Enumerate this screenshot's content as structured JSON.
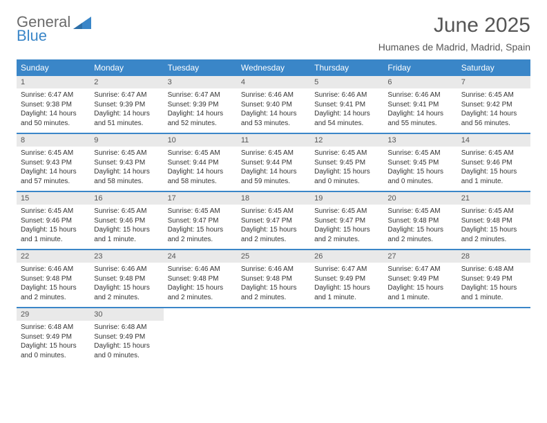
{
  "brand": {
    "line1": "General",
    "line2": "Blue"
  },
  "title": "June 2025",
  "location": "Humanes de Madrid, Madrid, Spain",
  "colors": {
    "brand_blue": "#3a86c8",
    "brand_gray": "#6b6b6b",
    "header_bg": "#3a86c8",
    "header_fg": "#ffffff",
    "daynum_bg": "#e9e9e9",
    "text": "#333333",
    "background": "#ffffff"
  },
  "typography": {
    "title_fontsize": 30,
    "location_fontsize": 14,
    "dow_fontsize": 12,
    "daynum_fontsize": 11,
    "cell_fontsize": 10
  },
  "days_of_week": [
    "Sunday",
    "Monday",
    "Tuesday",
    "Wednesday",
    "Thursday",
    "Friday",
    "Saturday"
  ],
  "weeks": [
    [
      {
        "n": "1",
        "sr": "Sunrise: 6:47 AM",
        "ss": "Sunset: 9:38 PM",
        "dl": "Daylight: 14 hours and 50 minutes."
      },
      {
        "n": "2",
        "sr": "Sunrise: 6:47 AM",
        "ss": "Sunset: 9:39 PM",
        "dl": "Daylight: 14 hours and 51 minutes."
      },
      {
        "n": "3",
        "sr": "Sunrise: 6:47 AM",
        "ss": "Sunset: 9:39 PM",
        "dl": "Daylight: 14 hours and 52 minutes."
      },
      {
        "n": "4",
        "sr": "Sunrise: 6:46 AM",
        "ss": "Sunset: 9:40 PM",
        "dl": "Daylight: 14 hours and 53 minutes."
      },
      {
        "n": "5",
        "sr": "Sunrise: 6:46 AM",
        "ss": "Sunset: 9:41 PM",
        "dl": "Daylight: 14 hours and 54 minutes."
      },
      {
        "n": "6",
        "sr": "Sunrise: 6:46 AM",
        "ss": "Sunset: 9:41 PM",
        "dl": "Daylight: 14 hours and 55 minutes."
      },
      {
        "n": "7",
        "sr": "Sunrise: 6:45 AM",
        "ss": "Sunset: 9:42 PM",
        "dl": "Daylight: 14 hours and 56 minutes."
      }
    ],
    [
      {
        "n": "8",
        "sr": "Sunrise: 6:45 AM",
        "ss": "Sunset: 9:43 PM",
        "dl": "Daylight: 14 hours and 57 minutes."
      },
      {
        "n": "9",
        "sr": "Sunrise: 6:45 AM",
        "ss": "Sunset: 9:43 PM",
        "dl": "Daylight: 14 hours and 58 minutes."
      },
      {
        "n": "10",
        "sr": "Sunrise: 6:45 AM",
        "ss": "Sunset: 9:44 PM",
        "dl": "Daylight: 14 hours and 58 minutes."
      },
      {
        "n": "11",
        "sr": "Sunrise: 6:45 AM",
        "ss": "Sunset: 9:44 PM",
        "dl": "Daylight: 14 hours and 59 minutes."
      },
      {
        "n": "12",
        "sr": "Sunrise: 6:45 AM",
        "ss": "Sunset: 9:45 PM",
        "dl": "Daylight: 15 hours and 0 minutes."
      },
      {
        "n": "13",
        "sr": "Sunrise: 6:45 AM",
        "ss": "Sunset: 9:45 PM",
        "dl": "Daylight: 15 hours and 0 minutes."
      },
      {
        "n": "14",
        "sr": "Sunrise: 6:45 AM",
        "ss": "Sunset: 9:46 PM",
        "dl": "Daylight: 15 hours and 1 minute."
      }
    ],
    [
      {
        "n": "15",
        "sr": "Sunrise: 6:45 AM",
        "ss": "Sunset: 9:46 PM",
        "dl": "Daylight: 15 hours and 1 minute."
      },
      {
        "n": "16",
        "sr": "Sunrise: 6:45 AM",
        "ss": "Sunset: 9:46 PM",
        "dl": "Daylight: 15 hours and 1 minute."
      },
      {
        "n": "17",
        "sr": "Sunrise: 6:45 AM",
        "ss": "Sunset: 9:47 PM",
        "dl": "Daylight: 15 hours and 2 minutes."
      },
      {
        "n": "18",
        "sr": "Sunrise: 6:45 AM",
        "ss": "Sunset: 9:47 PM",
        "dl": "Daylight: 15 hours and 2 minutes."
      },
      {
        "n": "19",
        "sr": "Sunrise: 6:45 AM",
        "ss": "Sunset: 9:47 PM",
        "dl": "Daylight: 15 hours and 2 minutes."
      },
      {
        "n": "20",
        "sr": "Sunrise: 6:45 AM",
        "ss": "Sunset: 9:48 PM",
        "dl": "Daylight: 15 hours and 2 minutes."
      },
      {
        "n": "21",
        "sr": "Sunrise: 6:45 AM",
        "ss": "Sunset: 9:48 PM",
        "dl": "Daylight: 15 hours and 2 minutes."
      }
    ],
    [
      {
        "n": "22",
        "sr": "Sunrise: 6:46 AM",
        "ss": "Sunset: 9:48 PM",
        "dl": "Daylight: 15 hours and 2 minutes."
      },
      {
        "n": "23",
        "sr": "Sunrise: 6:46 AM",
        "ss": "Sunset: 9:48 PM",
        "dl": "Daylight: 15 hours and 2 minutes."
      },
      {
        "n": "24",
        "sr": "Sunrise: 6:46 AM",
        "ss": "Sunset: 9:48 PM",
        "dl": "Daylight: 15 hours and 2 minutes."
      },
      {
        "n": "25",
        "sr": "Sunrise: 6:46 AM",
        "ss": "Sunset: 9:48 PM",
        "dl": "Daylight: 15 hours and 2 minutes."
      },
      {
        "n": "26",
        "sr": "Sunrise: 6:47 AM",
        "ss": "Sunset: 9:49 PM",
        "dl": "Daylight: 15 hours and 1 minute."
      },
      {
        "n": "27",
        "sr": "Sunrise: 6:47 AM",
        "ss": "Sunset: 9:49 PM",
        "dl": "Daylight: 15 hours and 1 minute."
      },
      {
        "n": "28",
        "sr": "Sunrise: 6:48 AM",
        "ss": "Sunset: 9:49 PM",
        "dl": "Daylight: 15 hours and 1 minute."
      }
    ],
    [
      {
        "n": "29",
        "sr": "Sunrise: 6:48 AM",
        "ss": "Sunset: 9:49 PM",
        "dl": "Daylight: 15 hours and 0 minutes."
      },
      {
        "n": "30",
        "sr": "Sunrise: 6:48 AM",
        "ss": "Sunset: 9:49 PM",
        "dl": "Daylight: 15 hours and 0 minutes."
      },
      null,
      null,
      null,
      null,
      null
    ]
  ]
}
